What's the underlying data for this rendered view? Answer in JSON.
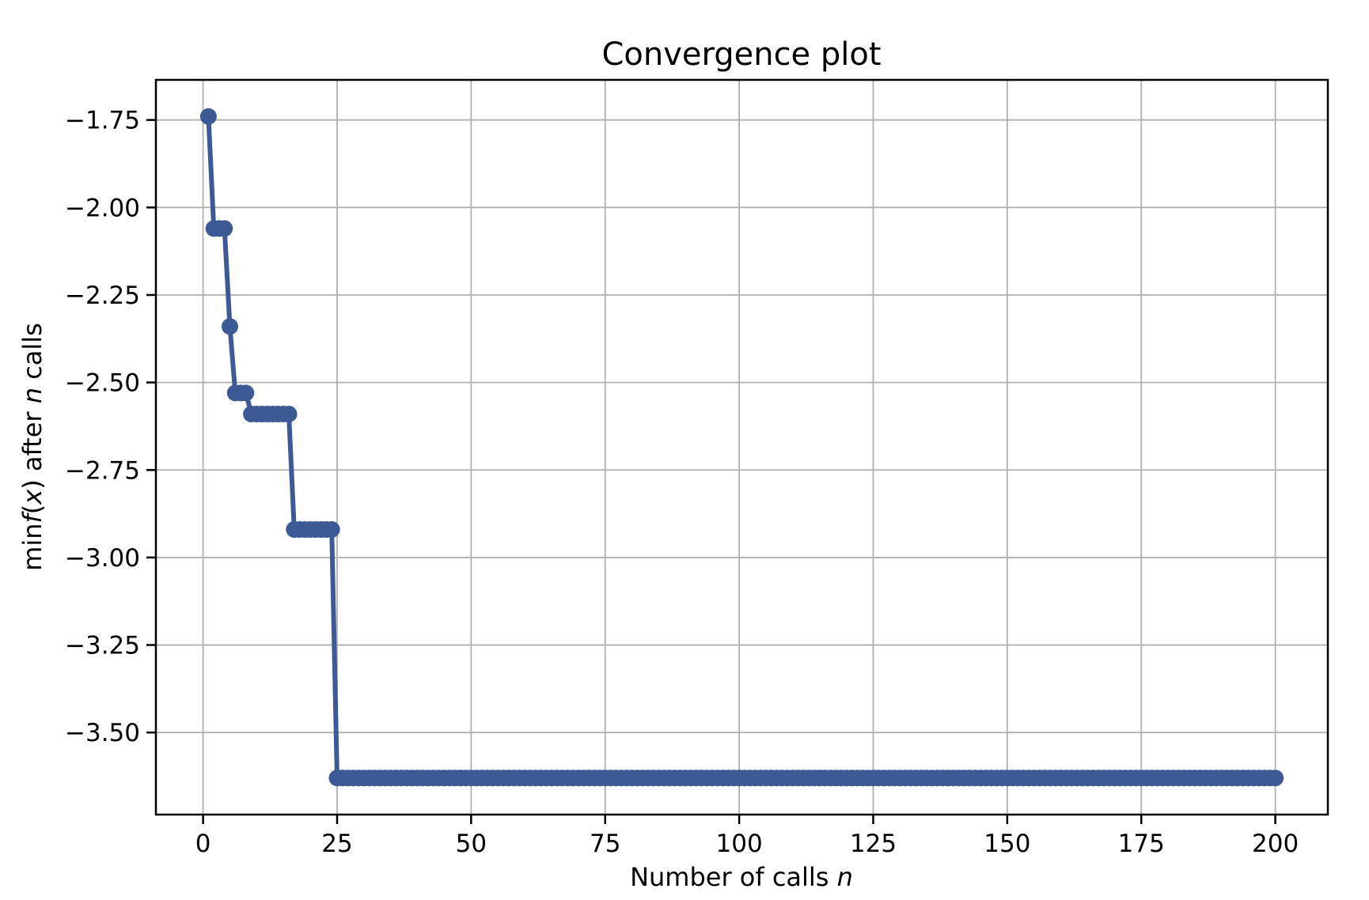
{
  "figure": {
    "title": "Convergence plot",
    "xlabel": "Number of calls n",
    "ylabel": "min f(x) after n calls"
  },
  "chart_data": {
    "type": "line",
    "title": "Convergence plot",
    "xlabel": "Number of calls n",
    "ylabel": "min f(x) after n calls",
    "xlabel_parts": [
      {
        "text": "Number of calls ",
        "italic": false
      },
      {
        "text": "n",
        "italic": true
      }
    ],
    "ylabel_parts": [
      {
        "text": "min",
        "italic": false
      },
      {
        "text": "f",
        "italic": true
      },
      {
        "text": "(",
        "italic": false
      },
      {
        "text": "x",
        "italic": true
      },
      {
        "text": ")",
        "italic": false
      },
      {
        "text": " after ",
        "italic": false
      },
      {
        "text": "n",
        "italic": true
      },
      {
        "text": " calls",
        "italic": false
      }
    ],
    "xlim": [
      -8.8,
      209.8
    ],
    "ylim": [
      -3.7345,
      -1.6355
    ],
    "x_ticks": [
      0,
      25,
      50,
      75,
      100,
      125,
      150,
      175,
      200
    ],
    "x_tick_labels": [
      "0",
      "25",
      "50",
      "75",
      "100",
      "125",
      "150",
      "175",
      "200"
    ],
    "y_ticks": [
      -1.75,
      -2.0,
      -2.25,
      -2.5,
      -2.75,
      -3.0,
      -3.25,
      -3.5
    ],
    "y_tick_labels": [
      "−1.75",
      "−2.00",
      "−2.25",
      "−2.50",
      "−2.75",
      "−3.00",
      "−3.25",
      "−3.50"
    ],
    "grid": true,
    "legend": "none",
    "line_color": "#3d5a96",
    "grid_color": "#b0b0b0",
    "spine_color": "#000000",
    "marker": "dot",
    "series": [
      {
        "name": "min f(x) after n calls",
        "x_start": 1,
        "x_end": 200,
        "steps": [
          {
            "from": 1,
            "to": 1,
            "value": -1.74
          },
          {
            "from": 2,
            "to": 4,
            "value": -2.06
          },
          {
            "from": 5,
            "to": 5,
            "value": -2.34
          },
          {
            "from": 6,
            "to": 8,
            "value": -2.53
          },
          {
            "from": 9,
            "to": 16,
            "value": -2.59
          },
          {
            "from": 17,
            "to": 24,
            "value": -2.92
          },
          {
            "from": 25,
            "to": 200,
            "value": -3.63
          }
        ]
      }
    ]
  }
}
